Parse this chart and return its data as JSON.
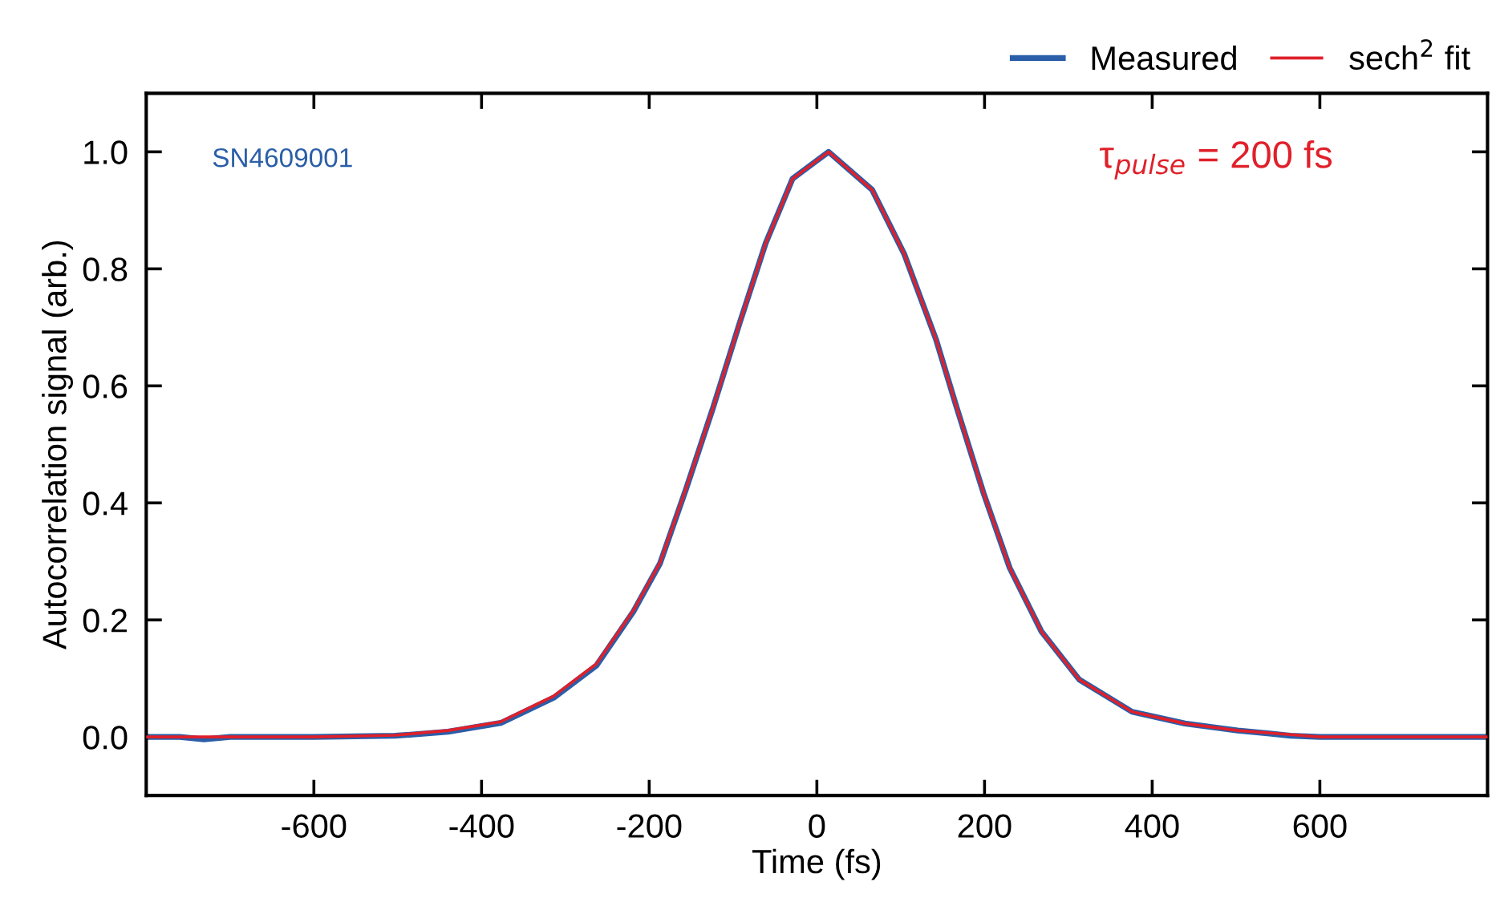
{
  "chart_data": {
    "type": "line",
    "xlabel": "Time (fs)",
    "ylabel": "Autocorrelation signal (arb.)",
    "xlim": [
      -800,
      800
    ],
    "ylim": [
      -0.1,
      1.1
    ],
    "xticks": [
      -600,
      -400,
      -200,
      0,
      200,
      400,
      600
    ],
    "yticks": [
      {
        "value": 0,
        "label": "0.0"
      },
      {
        "value": 0.2,
        "label": "0.2"
      },
      {
        "value": 0.4,
        "label": "0.4"
      },
      {
        "value": 0.6,
        "label": "0.6"
      },
      {
        "value": 0.8,
        "label": "0.8"
      },
      {
        "value": 1,
        "label": "1.0"
      }
    ],
    "annotations": [
      "SN4609001",
      "τ$_{pulse}$ = 200 fs"
    ],
    "legend": "top right",
    "grid": false,
    "line_style": "solid",
    "marker": "none",
    "series": [
      {
        "name": "Measured",
        "color": "#2a5ea8",
        "x": [
          -800,
          -760,
          -731,
          -700,
          -600,
          -503,
          -440,
          -377,
          -314,
          -263,
          -219,
          -187,
          -156,
          -124,
          -92,
          -61,
          -29,
          14,
          66,
          104,
          142,
          167,
          199,
          230,
          268,
          313,
          376,
          439,
          502,
          540,
          565,
          600,
          700,
          800
        ],
        "values": [
          0.0,
          0.0,
          -0.004,
          0.0,
          0.0,
          0.002,
          0.009,
          0.024,
          0.067,
          0.122,
          0.214,
          0.297,
          0.424,
          0.562,
          0.708,
          0.844,
          0.954,
          1.0,
          0.935,
          0.826,
          0.68,
          0.562,
          0.416,
          0.289,
          0.18,
          0.098,
          0.043,
          0.023,
          0.011,
          0.006,
          0.002,
          0.0,
          0.0,
          0.0
        ]
      },
      {
        "name": "sech$^{2}$ fit",
        "color": "#e0202a",
        "x": [
          -800,
          -700,
          -600,
          -503,
          -440,
          -377,
          -314,
          -263,
          -219,
          -187,
          -156,
          -124,
          -92,
          -61,
          -29,
          14,
          66,
          104,
          142,
          167,
          199,
          230,
          268,
          313,
          376,
          439,
          502,
          565,
          600,
          700,
          800
        ],
        "values": [
          0.0,
          0.0,
          0.0,
          0.003,
          0.011,
          0.026,
          0.07,
          0.125,
          0.216,
          0.298,
          0.425,
          0.562,
          0.708,
          0.844,
          0.954,
          1.0,
          0.935,
          0.826,
          0.68,
          0.562,
          0.416,
          0.289,
          0.18,
          0.098,
          0.043,
          0.023,
          0.011,
          0.004,
          0.0,
          0.0,
          0.0
        ]
      }
    ]
  }
}
